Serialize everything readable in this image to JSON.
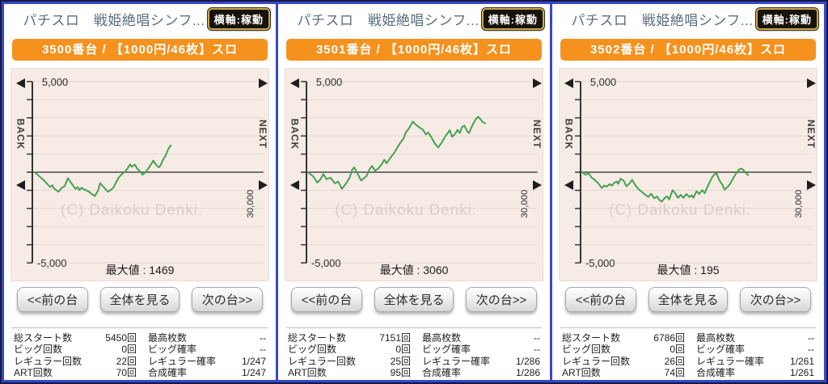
{
  "colors": {
    "frame_outer": "#181840",
    "frame_blue": "#3448d0",
    "machine_bar_orange": "#f5921e",
    "axis_button_bg": "#17120a",
    "axis_button_border": "#caa64f",
    "plot_background": "#f6ebe5",
    "grid_line": "#e6d8d2",
    "zero_line": "#4a4a4a",
    "series_green": "#44a14e",
    "title_text": "#5d6e7e",
    "watermark_text": "#dacfc8"
  },
  "panels": [
    {
      "header": {
        "title": "パチスロ　戦姫絶唱シンフ...",
        "axis_button": "横軸:稼動"
      },
      "machine_bar": "3500番台 / 【1000円/46枚】スロ",
      "nav": {
        "back": "BACK",
        "next": "NEXT"
      },
      "buttons": {
        "prev": "<<前の台",
        "overview": "全体を見る",
        "next": "次の台>>"
      },
      "stats": {
        "rows": [
          {
            "l1": "総スタート数",
            "v1": "5450回",
            "l2": "最高枚数",
            "v2": "--"
          },
          {
            "l1": "ビッグ回数",
            "v1": "0回",
            "l2": "ビッグ確率",
            "v2": "--"
          },
          {
            "l1": "レギュラー回数",
            "v1": "22回",
            "l2": "レギュラー確率",
            "v2": "1/247"
          },
          {
            "l1": "ART回数",
            "v1": "70回",
            "l2": "合成確率",
            "v2": "1/247"
          }
        ]
      }
    },
    {
      "header": {
        "title": "パチスロ　戦姫絶唱シンフ...",
        "axis_button": "横軸:稼動"
      },
      "machine_bar": "3501番台 / 【1000円/46枚】スロ",
      "nav": {
        "back": "BACK",
        "next": "NEXT"
      },
      "buttons": {
        "prev": "<<前の台",
        "overview": "全体を見る",
        "next": "次の台>>"
      },
      "stats": {
        "rows": [
          {
            "l1": "総スタート数",
            "v1": "7151回",
            "l2": "最高枚数",
            "v2": "--"
          },
          {
            "l1": "ビッグ回数",
            "v1": "0回",
            "l2": "ビッグ確率",
            "v2": "--"
          },
          {
            "l1": "レギュラー回数",
            "v1": "25回",
            "l2": "レギュラー確率",
            "v2": "1/286"
          },
          {
            "l1": "ART回数",
            "v1": "95回",
            "l2": "合成確率",
            "v2": "1/286"
          }
        ]
      }
    },
    {
      "header": {
        "title": "パチスロ　戦姫絶唱シンフ...",
        "axis_button": "横軸:稼動"
      },
      "machine_bar": "3502番台 / 【1000円/46枚】スロ",
      "nav": {
        "back": "BACK",
        "next": "NEXT"
      },
      "buttons": {
        "prev": "<<前の台",
        "overview": "全体を見る",
        "next": "次の台>>"
      },
      "stats": {
        "rows": [
          {
            "l1": "総スタート数",
            "v1": "6786回",
            "l2": "最高枚数",
            "v2": "--"
          },
          {
            "l1": "ビッグ回数",
            "v1": "0回",
            "l2": "ビッグ確率",
            "v2": "--"
          },
          {
            "l1": "レギュラー回数",
            "v1": "26回",
            "l2": "レギュラー確率",
            "v2": "1/261"
          },
          {
            "l1": "ART回数",
            "v1": "74回",
            "l2": "合成確率",
            "v2": "1/261"
          }
        ]
      }
    }
  ],
  "chart_data": [
    {
      "type": "line",
      "title": "3500番台 スランプグラフ",
      "y_top_label": "5,000",
      "y_bottom_label": "-5,000",
      "x_end_label": "30,000",
      "watermark": "(C) Daikoku Denki.",
      "max_label": "最大値 : 1469",
      "max_value": 1469,
      "ylim": [
        -5000,
        5000
      ],
      "xlim": [
        0,
        30000
      ],
      "grid_step_y": 1000,
      "line_color": "#44a14e",
      "points": [
        [
          300,
          0
        ],
        [
          1500,
          -450
        ],
        [
          2300,
          -820
        ],
        [
          2600,
          -715
        ],
        [
          2800,
          -895
        ],
        [
          3400,
          -1075
        ],
        [
          3800,
          -865
        ],
        [
          4200,
          -775
        ],
        [
          4600,
          -330
        ],
        [
          5100,
          -630
        ],
        [
          5600,
          -925
        ],
        [
          5900,
          -820
        ],
        [
          6100,
          -985
        ],
        [
          6400,
          -865
        ],
        [
          6700,
          -940
        ],
        [
          7300,
          -1060
        ],
        [
          7700,
          -1195
        ],
        [
          8100,
          -1315
        ],
        [
          8500,
          -1045
        ],
        [
          8800,
          -600
        ],
        [
          9200,
          -790
        ],
        [
          9800,
          -1075
        ],
        [
          10100,
          -1000
        ],
        [
          10500,
          -865
        ],
        [
          11200,
          -300
        ],
        [
          11600,
          -105
        ],
        [
          12000,
          15
        ],
        [
          12400,
          240
        ],
        [
          12700,
          435
        ],
        [
          12900,
          300
        ],
        [
          13300,
          420
        ],
        [
          13600,
          210
        ],
        [
          14000,
          30
        ],
        [
          14300,
          -135
        ],
        [
          14700,
          0
        ],
        [
          15100,
          240
        ],
        [
          15500,
          495
        ],
        [
          15700,
          640
        ],
        [
          16000,
          435
        ],
        [
          16400,
          270
        ],
        [
          16600,
          345
        ],
        [
          16900,
          630
        ],
        [
          17300,
          925
        ],
        [
          17600,
          1240
        ],
        [
          17900,
          1450
        ],
        [
          18000,
          1469
        ]
      ]
    },
    {
      "type": "line",
      "title": "3501番台 スランプグラフ",
      "y_top_label": "5,000",
      "y_bottom_label": "-5,000",
      "x_end_label": "30,000",
      "watermark": "(C) Daikoku Denki.",
      "max_label": "最大値 : 3060",
      "max_value": 3060,
      "ylim": [
        -5000,
        5000
      ],
      "xlim": [
        0,
        30000
      ],
      "grid_step_y": 1000,
      "line_color": "#44a14e",
      "points": [
        [
          200,
          0
        ],
        [
          900,
          -240
        ],
        [
          1400,
          -570
        ],
        [
          1800,
          -405
        ],
        [
          2200,
          -105
        ],
        [
          2600,
          -390
        ],
        [
          3100,
          -300
        ],
        [
          3700,
          -615
        ],
        [
          4100,
          -510
        ],
        [
          4600,
          -915
        ],
        [
          5100,
          -645
        ],
        [
          5600,
          -300
        ],
        [
          5900,
          105
        ],
        [
          6200,
          270
        ],
        [
          6700,
          -135
        ],
        [
          7100,
          -465
        ],
        [
          7800,
          -210
        ],
        [
          8200,
          165
        ],
        [
          8500,
          345
        ],
        [
          8900,
          90
        ],
        [
          9300,
          195
        ],
        [
          9800,
          465
        ],
        [
          10100,
          690
        ],
        [
          10400,
          495
        ],
        [
          11100,
          915
        ],
        [
          11400,
          1065
        ],
        [
          11800,
          1365
        ],
        [
          12200,
          1635
        ],
        [
          12600,
          1860
        ],
        [
          12900,
          2190
        ],
        [
          13300,
          2415
        ],
        [
          13800,
          2790
        ],
        [
          14200,
          2625
        ],
        [
          14700,
          2460
        ],
        [
          15100,
          2355
        ],
        [
          15500,
          2085
        ],
        [
          15800,
          2190
        ],
        [
          16200,
          1935
        ],
        [
          16700,
          1560
        ],
        [
          17100,
          1365
        ],
        [
          17600,
          1665
        ],
        [
          18000,
          1965
        ],
        [
          18400,
          2190
        ],
        [
          18600,
          2325
        ],
        [
          18900,
          1950
        ],
        [
          19300,
          2115
        ],
        [
          19600,
          2340
        ],
        [
          19900,
          2160
        ],
        [
          20200,
          2490
        ],
        [
          20500,
          2565
        ],
        [
          20900,
          2235
        ],
        [
          21100,
          2160
        ],
        [
          21600,
          2640
        ],
        [
          22000,
          2940
        ],
        [
          22300,
          3060
        ],
        [
          22900,
          2760
        ],
        [
          23200,
          2700
        ]
      ]
    },
    {
      "type": "line",
      "title": "3502番台 スランプグラフ",
      "y_top_label": "5,000",
      "y_bottom_label": "-5,000",
      "x_end_label": "30,000",
      "watermark": "(C) Daikoku Denki.",
      "max_label": "最大値 : 195",
      "max_value": 195,
      "ylim": [
        -5000,
        5000
      ],
      "xlim": [
        0,
        30000
      ],
      "grid_step_y": 1000,
      "line_color": "#44a14e",
      "points": [
        [
          200,
          0
        ],
        [
          650,
          -135
        ],
        [
          1050,
          -60
        ],
        [
          1400,
          -285
        ],
        [
          1750,
          -390
        ],
        [
          2300,
          -615
        ],
        [
          2750,
          -870
        ],
        [
          3050,
          -735
        ],
        [
          3400,
          -795
        ],
        [
          3750,
          -660
        ],
        [
          4100,
          -735
        ],
        [
          4350,
          -585
        ],
        [
          4700,
          -510
        ],
        [
          4900,
          -645
        ],
        [
          5200,
          -360
        ],
        [
          5600,
          -480
        ],
        [
          5950,
          -780
        ],
        [
          6350,
          -615
        ],
        [
          6700,
          -420
        ],
        [
          7100,
          -720
        ],
        [
          7550,
          -945
        ],
        [
          7950,
          -1080
        ],
        [
          8400,
          -1245
        ],
        [
          8800,
          -1365
        ],
        [
          9150,
          -1185
        ],
        [
          9550,
          -1440
        ],
        [
          9950,
          -1335
        ],
        [
          10250,
          -1545
        ],
        [
          10550,
          -1620
        ],
        [
          10900,
          -1425
        ],
        [
          11250,
          -1335
        ],
        [
          11500,
          -1500
        ],
        [
          11950,
          -990
        ],
        [
          12300,
          -1170
        ],
        [
          12650,
          -1410
        ],
        [
          13000,
          -1245
        ],
        [
          13350,
          -1410
        ],
        [
          13750,
          -1200
        ],
        [
          14100,
          -1365
        ],
        [
          14450,
          -1275
        ],
        [
          14650,
          -1410
        ],
        [
          15050,
          -1050
        ],
        [
          15400,
          -1200
        ],
        [
          15800,
          -990
        ],
        [
          16100,
          -1155
        ],
        [
          16700,
          -600
        ],
        [
          17050,
          -300
        ],
        [
          17400,
          -105
        ],
        [
          17650,
          -60
        ],
        [
          18000,
          -435
        ],
        [
          18350,
          -660
        ],
        [
          18700,
          -960
        ],
        [
          19100,
          -810
        ],
        [
          19450,
          -615
        ],
        [
          19850,
          -300
        ],
        [
          20200,
          -60
        ],
        [
          20600,
          165
        ],
        [
          20950,
          195
        ],
        [
          21350,
          15
        ],
        [
          21750,
          -165
        ]
      ]
    }
  ]
}
